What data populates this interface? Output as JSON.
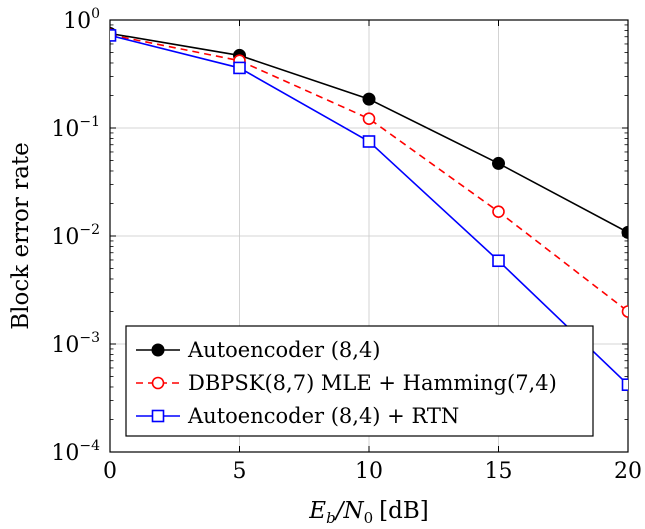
{
  "chart_data": {
    "type": "line",
    "title": "",
    "xlabel_var": "E",
    "xlabel_sub1": "b",
    "xlabel_slash": "/N",
    "xlabel_sub2": "0",
    "xlabel_unit": "[dB]",
    "ylabel": "Block error rate",
    "x": [
      0,
      5,
      10,
      15,
      20
    ],
    "xlim": [
      0,
      20
    ],
    "ylim": [
      0.0001,
      1
    ],
    "yscale": "log",
    "grid": true,
    "legend_position": "bottom-left",
    "x_ticks": [
      0,
      5,
      10,
      15,
      20
    ],
    "x_tick_labels": [
      "0",
      "5",
      "10",
      "15",
      "20"
    ],
    "y_ticks": [
      {
        "value": 1,
        "base": "10",
        "exp": "0"
      },
      {
        "value": 0.1,
        "base": "10",
        "exp": "−1"
      },
      {
        "value": 0.01,
        "base": "10",
        "exp": "−2"
      },
      {
        "value": 0.001,
        "base": "10",
        "exp": "−3"
      },
      {
        "value": 0.0001,
        "base": "10",
        "exp": "−4"
      }
    ],
    "series": [
      {
        "name": "Autoencoder (8,4)",
        "values": [
          0.75,
          0.47,
          0.185,
          0.047,
          0.0108
        ],
        "color": "#000000",
        "dash": "solid",
        "marker": "filled-circle"
      },
      {
        "name": "DBPSK(8,7) MLE + Hamming(7,4)",
        "values": [
          0.73,
          0.42,
          0.122,
          0.0168,
          0.002
        ],
        "color": "#ff0000",
        "dash": "dashed",
        "marker": "open-circle"
      },
      {
        "name": "Autoencoder (8,4) + RTN",
        "values": [
          0.72,
          0.36,
          0.075,
          0.0059,
          0.00042
        ],
        "color": "#0000ff",
        "dash": "solid",
        "marker": "open-square"
      }
    ]
  }
}
